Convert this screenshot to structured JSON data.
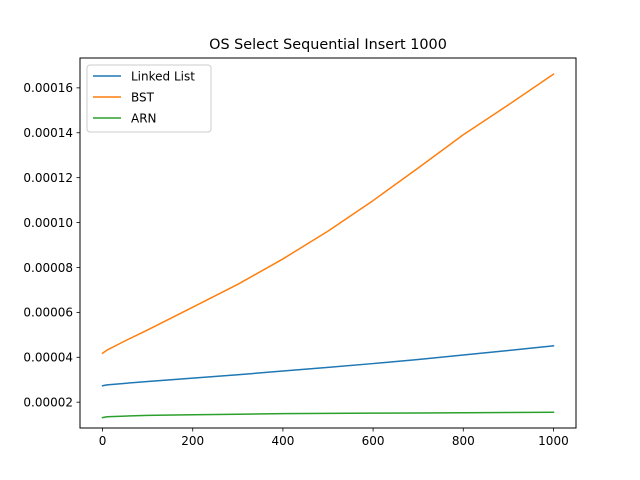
{
  "chart_data": {
    "type": "line",
    "title": "OS Select Sequential Insert 1000",
    "xlabel": "",
    "ylabel": "",
    "xlim": [
      -50,
      1050
    ],
    "ylim": [
      8.5e-06,
      0.0001733
    ],
    "xticks": [
      0,
      200,
      400,
      600,
      800,
      1000
    ],
    "xtick_labels": [
      "0",
      "200",
      "400",
      "600",
      "800",
      "1000"
    ],
    "yticks": [
      2e-05,
      4e-05,
      6e-05,
      8e-05,
      0.0001,
      0.00012,
      0.00014,
      0.00016
    ],
    "ytick_labels": [
      "0.00002",
      "0.00004",
      "0.00006",
      "0.00008",
      "0.00010",
      "0.00012",
      "0.00014",
      "0.00016"
    ],
    "grid": false,
    "legend_position": "upper-left",
    "x": [
      0,
      10,
      50,
      100,
      200,
      300,
      400,
      500,
      600,
      700,
      800,
      900,
      1000
    ],
    "series": [
      {
        "name": "Linked List",
        "color": "#1f77b4",
        "values": [
          2.73e-05,
          2.77e-05,
          2.84e-05,
          2.92e-05,
          3.07e-05,
          3.22e-05,
          3.39e-05,
          3.55e-05,
          3.72e-05,
          3.9e-05,
          4.1e-05,
          4.3e-05,
          4.51e-05
        ]
      },
      {
        "name": "BST",
        "color": "#ff7f0e",
        "values": [
          4.18e-05,
          4.32e-05,
          4.73e-05,
          5.22e-05,
          6.23e-05,
          7.25e-05,
          8.38e-05,
          9.62e-05,
          0.0001098,
          0.0001243,
          0.0001391,
          0.0001524,
          0.0001661
        ]
      },
      {
        "name": "ARN",
        "color": "#2ca02c",
        "values": [
          1.31e-05,
          1.35e-05,
          1.38e-05,
          1.41e-05,
          1.44e-05,
          1.46e-05,
          1.49e-05,
          1.5e-05,
          1.51e-05,
          1.52e-05,
          1.53e-05,
          1.54e-05,
          1.55e-05
        ]
      }
    ]
  }
}
